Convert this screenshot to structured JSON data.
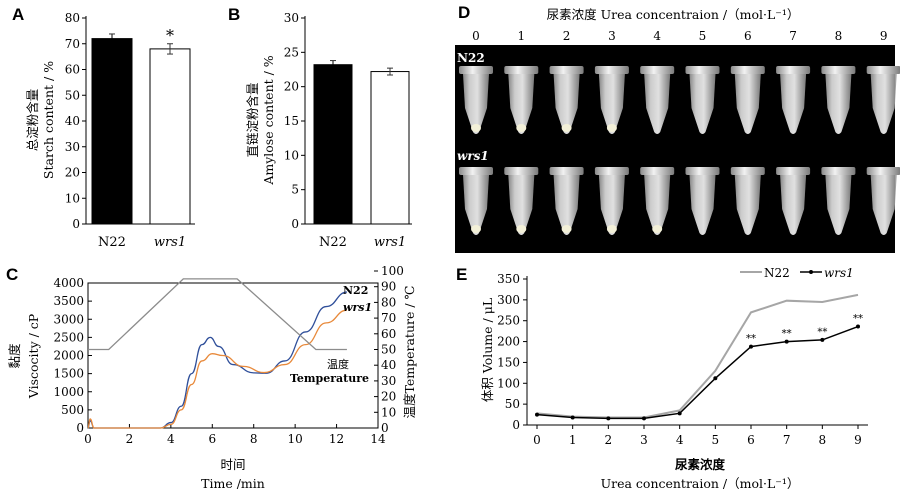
{
  "colors": {
    "n22_bar": "#000000",
    "wrs1_bar": "#ffffff",
    "viscosity_n22": "#2f4f9a",
    "viscosity_wrs1": "#e8893a",
    "temperature": "#8c8c8c",
    "volume_n22": "#a6a6a6",
    "volume_wrs1": "#000000",
    "photo_background": "#000000"
  },
  "panels": {
    "A": {
      "label": "A"
    },
    "B": {
      "label": "B"
    },
    "C": {
      "label": "C"
    },
    "D": {
      "label": "D"
    },
    "E": {
      "label": "E"
    }
  },
  "chart_data": [
    {
      "panel": "A",
      "type": "bar",
      "categories": [
        "N22",
        "wrs1"
      ],
      "values": [
        72,
        68
      ],
      "errors": [
        1.8,
        2.0
      ],
      "significance": [
        "",
        "*"
      ],
      "ylabel_cn": "总淀粉含量",
      "ylabel_en": "Starch content / %",
      "ylim": [
        0,
        80
      ],
      "yticks": [
        "0",
        "10",
        "20",
        "30",
        "40",
        "50",
        "60",
        "70",
        "80"
      ]
    },
    {
      "panel": "B",
      "type": "bar",
      "categories": [
        "N22",
        "wrs1"
      ],
      "values": [
        23.2,
        22.2
      ],
      "errors": [
        0.6,
        0.5
      ],
      "ylabel_cn": "直链淀粉含量",
      "ylabel_en": "Amylose content / %",
      "ylim": [
        0,
        30
      ],
      "yticks": [
        "0",
        "5",
        "10",
        "15",
        "20",
        "25",
        "30"
      ]
    },
    {
      "panel": "C",
      "type": "line",
      "xlabel_cn": "时间",
      "xlabel_en": "Time /min",
      "ylabel_cn": "黏度",
      "ylabel_en": "Viscocity / cP",
      "y2label": "温度Temperature / ℃",
      "xlim": [
        0,
        14
      ],
      "ylim": [
        0,
        4000
      ],
      "y2lim": [
        0,
        100
      ],
      "xticks": [
        "0",
        "2",
        "4",
        "6",
        "8",
        "10",
        "12",
        "14"
      ],
      "yticks": [
        "0",
        "500",
        "1000",
        "1500",
        "2000",
        "2500",
        "3000",
        "3500",
        "4000"
      ],
      "y2ticks": [
        "0",
        "10",
        "20",
        "30",
        "40",
        "50",
        "60",
        "70",
        "80",
        "90",
        "100"
      ],
      "series_labels": [
        "N22",
        "wrs1"
      ],
      "temperature_label_cn": "温度",
      "temperature_label_en": "Temperature",
      "series": [
        {
          "name": "N22",
          "x": [
            0,
            0.1,
            0.3,
            3.5,
            4.0,
            4.5,
            5.0,
            5.5,
            5.9,
            6.3,
            7.0,
            8.0,
            8.6,
            9.5,
            10.5,
            11.5,
            12.5
          ],
          "y": [
            0,
            200,
            0,
            0,
            150,
            600,
            1500,
            2300,
            2500,
            2250,
            1750,
            1520,
            1510,
            1850,
            2650,
            3350,
            3750
          ]
        },
        {
          "name": "wrs1",
          "x": [
            0,
            0.1,
            0.3,
            3.5,
            4.0,
            4.5,
            5.0,
            5.5,
            6.0,
            6.5,
            7.5,
            8.5,
            9.5,
            10.5,
            11.5,
            12.5
          ],
          "y": [
            0,
            250,
            0,
            0,
            100,
            500,
            1200,
            1850,
            2050,
            2000,
            1700,
            1530,
            1750,
            2300,
            2900,
            3250
          ]
        },
        {
          "name": "温度",
          "axis": "y2",
          "x": [
            0,
            1.0,
            4.6,
            7.2,
            11.0,
            12.5
          ],
          "y": [
            50,
            50,
            95,
            95,
            50,
            50
          ]
        }
      ]
    },
    {
      "panel": "E",
      "type": "line",
      "x": [
        0,
        1,
        2,
        3,
        4,
        5,
        6,
        7,
        8,
        9
      ],
      "xticks": [
        "0",
        "1",
        "2",
        "3",
        "4",
        "5",
        "6",
        "7",
        "8",
        "9"
      ],
      "yticks": [
        "0",
        "50",
        "100",
        "150",
        "200",
        "250",
        "300",
        "350"
      ],
      "ylim": [
        0,
        350
      ],
      "xlabel_cn": "尿素浓度",
      "xlabel_en": "Urea concentraion /（mol·L⁻¹）",
      "ylabel": "体积 Volume / μL",
      "significance": [
        "",
        "",
        "",
        "",
        "",
        "",
        "**",
        "**",
        "**",
        "**"
      ],
      "series": [
        {
          "name": "N22",
          "values": [
            28,
            20,
            18,
            18,
            35,
            130,
            270,
            298,
            295,
            312
          ]
        },
        {
          "name": "wrs1",
          "values": [
            25,
            18,
            16,
            16,
            28,
            112,
            188,
            200,
            204,
            236
          ]
        }
      ]
    }
  ],
  "photo": {
    "title": "尿素浓度 Urea concentraion /（mol·L⁻¹）",
    "concentrations": [
      "0",
      "1",
      "2",
      "3",
      "4",
      "5",
      "6",
      "7",
      "8",
      "9"
    ],
    "row_labels": [
      "N22",
      "wrs1"
    ]
  }
}
